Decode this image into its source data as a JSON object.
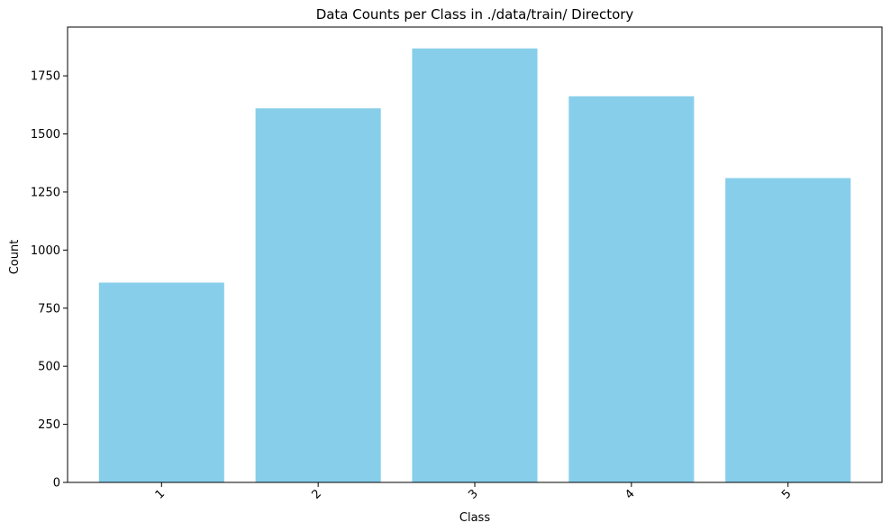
{
  "chart_data": {
    "type": "bar",
    "title": "Data Counts per Class in ./data/train/ Directory",
    "xlabel": "Class",
    "ylabel": "Count",
    "categories": [
      "1",
      "2",
      "3",
      "4",
      "5"
    ],
    "values": [
      860,
      1610,
      1868,
      1662,
      1310
    ],
    "ylim": [
      0,
      1960
    ],
    "yticks": [
      0,
      250,
      500,
      750,
      1000,
      1250,
      1500,
      1750
    ],
    "bar_color": "#87CEEB",
    "grid": false,
    "legend": "none",
    "xtick_rotation_deg": 45
  }
}
